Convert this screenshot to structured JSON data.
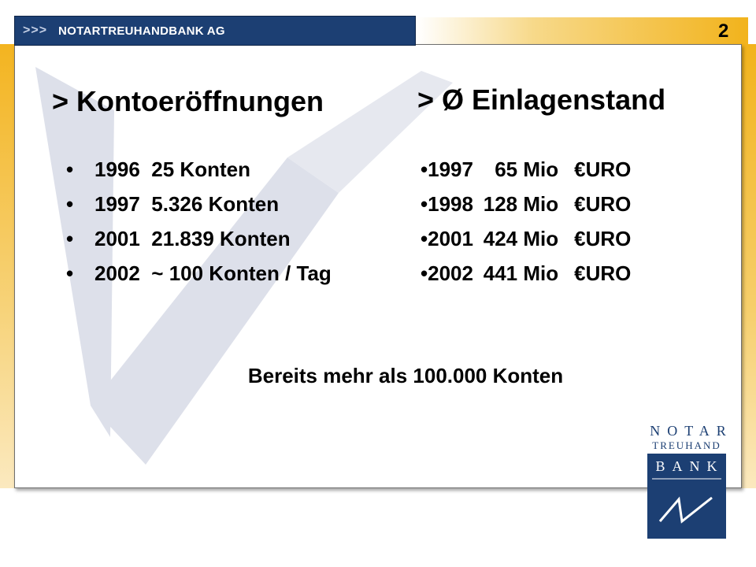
{
  "header": {
    "arrows": ">>>",
    "title": "NOTARTREUHANDBANK AG",
    "page_number": "2"
  },
  "left_section": {
    "heading": "> Kontoeröffnungen",
    "bullet": "•",
    "items": [
      {
        "text": "1996  25 Konten"
      },
      {
        "text": "1997  5.326 Konten"
      },
      {
        "text": "2001  21.839 Konten"
      },
      {
        "text": "2002  ~ 100 Konten / Tag"
      }
    ]
  },
  "right_section": {
    "heading": "> Ø Einlagenstand",
    "bullet": "•",
    "items": [
      {
        "year": "1997",
        "amount": "65 Mio",
        "currency": "€URO"
      },
      {
        "year": "1998",
        "amount": "128 Mio",
        "currency": "€URO"
      },
      {
        "year": "2001",
        "amount": "424 Mio",
        "currency": "€URO"
      },
      {
        "year": "2002",
        "amount": "441 Mio",
        "currency": "€URO"
      }
    ]
  },
  "summary": "Bereits mehr als 100.000 Konten",
  "logo": {
    "line1": "NOTAR",
    "line2": "TREUHAND",
    "line3": "BANK"
  },
  "colors": {
    "brand_blue": "#1c3f73",
    "gold": "#f2b31c",
    "watermark": "#dde0ea"
  }
}
